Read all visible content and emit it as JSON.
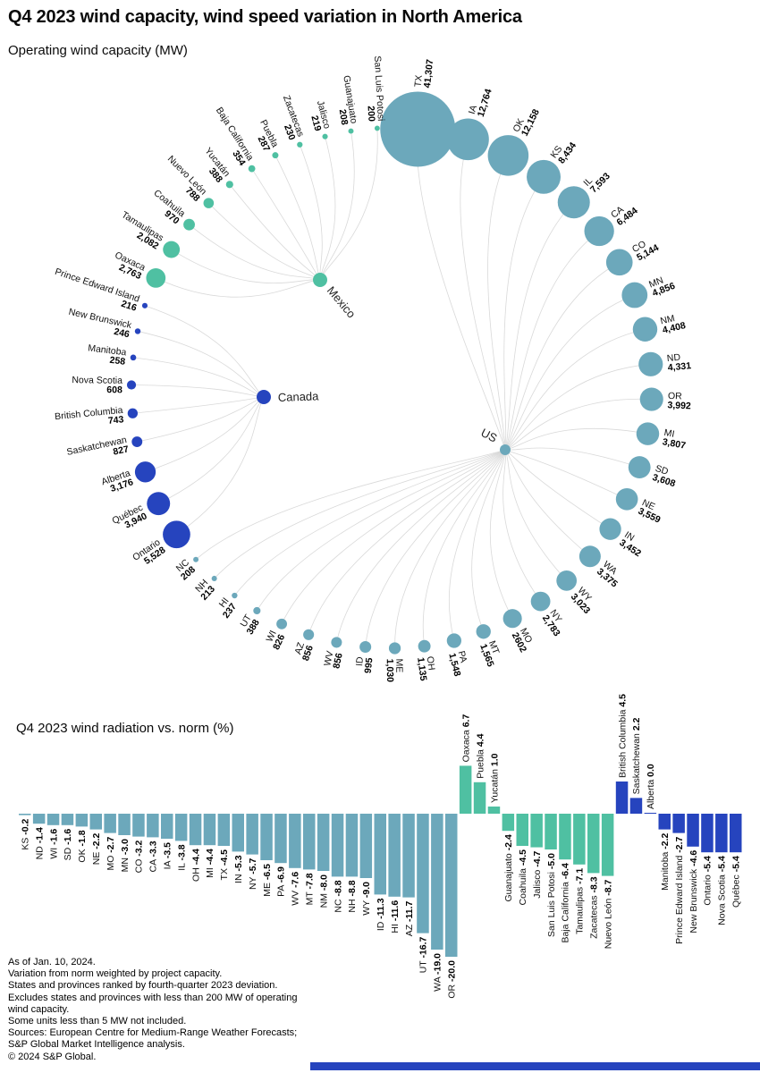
{
  "title": "Q4 2023 wind capacity, wind speed variation in North America",
  "colors": {
    "us": "#6CA8BB",
    "canada": "#2644BE",
    "mexico": "#4FC0A2",
    "link": "#D9D9D9",
    "text": "#111111",
    "bottom_rule": "#2644BE"
  },
  "chart_data": [
    {
      "type": "bubble",
      "title": "Operating wind capacity (MW)",
      "unit": "MW",
      "groups": [
        {
          "name": "US",
          "color_key": "us",
          "nodes": [
            {
              "label": "TX",
              "value": 41307,
              "display": "41,307"
            },
            {
              "label": "IA",
              "value": 12764,
              "display": "12,764"
            },
            {
              "label": "OK",
              "value": 12158,
              "display": "12,158"
            },
            {
              "label": "KS",
              "value": 8434,
              "display": "8,434"
            },
            {
              "label": "IL",
              "value": 7593,
              "display": "7,593"
            },
            {
              "label": "CA",
              "value": 6484,
              "display": "6,484"
            },
            {
              "label": "CO",
              "value": 5144,
              "display": "5,144"
            },
            {
              "label": "MN",
              "value": 4856,
              "display": "4,856"
            },
            {
              "label": "NM",
              "value": 4408,
              "display": "4,408"
            },
            {
              "label": "ND",
              "value": 4331,
              "display": "4,331"
            },
            {
              "label": "OR",
              "value": 3992,
              "display": "3,992"
            },
            {
              "label": "MI",
              "value": 3807,
              "display": "3,807"
            },
            {
              "label": "SD",
              "value": 3608,
              "display": "3,608"
            },
            {
              "label": "NE",
              "value": 3559,
              "display": "3,559"
            },
            {
              "label": "IN",
              "value": 3452,
              "display": "3,452"
            },
            {
              "label": "WA",
              "value": 3375,
              "display": "3,375"
            },
            {
              "label": "WY",
              "value": 3023,
              "display": "3,023"
            },
            {
              "label": "NY",
              "value": 2783,
              "display": "2,783"
            },
            {
              "label": "MO",
              "value": 2602,
              "display": "2602"
            },
            {
              "label": "MT",
              "value": 1565,
              "display": "1,565"
            },
            {
              "label": "PA",
              "value": 1548,
              "display": "1,548"
            },
            {
              "label": "OH",
              "value": 1135,
              "display": "1,135"
            },
            {
              "label": "ME",
              "value": 1030,
              "display": "1,030"
            },
            {
              "label": "ID",
              "value": 995,
              "display": "995"
            },
            {
              "label": "WV",
              "value": 856,
              "display": "856"
            },
            {
              "label": "AZ",
              "value": 856,
              "display": "856"
            },
            {
              "label": "WI",
              "value": 826,
              "display": "826"
            },
            {
              "label": "UT",
              "value": 388,
              "display": "388"
            },
            {
              "label": "HI",
              "value": 237,
              "display": "237"
            },
            {
              "label": "NH",
              "value": 213,
              "display": "213"
            },
            {
              "label": "NC",
              "value": 208,
              "display": "208"
            }
          ]
        },
        {
          "name": "Canada",
          "color_key": "canada",
          "nodes": [
            {
              "label": "Ontario",
              "value": 5528,
              "display": "5,528"
            },
            {
              "label": "Québec",
              "value": 3940,
              "display": "3,940"
            },
            {
              "label": "Alberta",
              "value": 3176,
              "display": "3,176"
            },
            {
              "label": "Saskatchewan",
              "value": 827,
              "display": "827"
            },
            {
              "label": "British Columbia",
              "value": 743,
              "display": "743"
            },
            {
              "label": "Nova Scotia",
              "value": 608,
              "display": "608"
            },
            {
              "label": "Manitoba",
              "value": 258,
              "display": "258"
            },
            {
              "label": "New Brunswick",
              "value": 246,
              "display": "246"
            },
            {
              "label": "Prince Edward Island",
              "value": 216,
              "display": "216"
            }
          ]
        },
        {
          "name": "Mexico",
          "color_key": "mexico",
          "nodes": [
            {
              "label": "Oaxaca",
              "value": 2763,
              "display": "2,763"
            },
            {
              "label": "Tamaulipas",
              "value": 2082,
              "display": "2,082"
            },
            {
              "label": "Coahuila",
              "value": 970,
              "display": "970"
            },
            {
              "label": "Nuevo León",
              "value": 788,
              "display": "788"
            },
            {
              "label": "Yucatán",
              "value": 388,
              "display": "388"
            },
            {
              "label": "Baja California",
              "value": 354,
              "display": "354"
            },
            {
              "label": "Puebla",
              "value": 287,
              "display": "287"
            },
            {
              "label": "Zacatecas",
              "value": 230,
              "display": "230"
            },
            {
              "label": "Jalisco",
              "value": 219,
              "display": "219"
            },
            {
              "label": "Guanajuato",
              "value": 208,
              "display": "208"
            },
            {
              "label": "San Luis Potosi",
              "value": 200,
              "display": "200"
            }
          ]
        }
      ]
    },
    {
      "type": "bar",
      "title": "Q4 2023 wind radiation vs. norm (%)",
      "unit": "%",
      "ylim": [
        -20,
        6.7
      ],
      "series": [
        {
          "name": "US",
          "color_key": "us",
          "categories": [
            "KS",
            "ND",
            "WI",
            "SD",
            "OK",
            "NE",
            "MO",
            "MN",
            "CO",
            "CA",
            "IA",
            "IL",
            "OH",
            "MI",
            "TX",
            "IN",
            "NY",
            "ME",
            "PA",
            "WV",
            "MT",
            "NM",
            "NC",
            "NH",
            "WY",
            "ID",
            "HI",
            "AZ",
            "UT",
            "WA",
            "OR"
          ],
          "values": [
            -0.2,
            -1.4,
            -1.6,
            -1.6,
            -1.8,
            -2.2,
            -2.7,
            -3.0,
            -3.2,
            -3.3,
            -3.5,
            -3.8,
            -4.4,
            -4.4,
            -4.5,
            -5.3,
            -5.7,
            -6.5,
            -6.9,
            -7.6,
            -7.8,
            -8.0,
            -8.8,
            -8.8,
            -9.0,
            -11.3,
            -11.6,
            -11.7,
            -16.7,
            -19.0,
            -20.0
          ]
        },
        {
          "name": "Mexico",
          "color_key": "mexico",
          "categories": [
            "Oaxaca",
            "Puebla",
            "Yucatán",
            "Guanajuato",
            "Coahuila",
            "Jalisco",
            "San Luis Potosi",
            "Baja California",
            "Tamaulipas",
            "Zacatecas",
            "Nuevo León"
          ],
          "values": [
            6.7,
            4.4,
            1.0,
            -2.4,
            -4.5,
            -4.7,
            -5.0,
            -6.4,
            -7.1,
            -8.3,
            -8.7
          ]
        },
        {
          "name": "Canada",
          "color_key": "canada",
          "categories": [
            "British Columbia",
            "Saskatchewan",
            "Alberta",
            "Manitoba",
            "Prince Edward Island",
            "New Brunswick",
            "Ontario",
            "Nova Scotia",
            "Québec"
          ],
          "values": [
            4.5,
            2.2,
            0.0,
            -2.2,
            -2.7,
            -4.6,
            -5.4,
            -5.4,
            -5.4
          ]
        }
      ]
    }
  ],
  "footnotes": [
    "As of Jan. 10, 2024.",
    "Variation from norm weighted by project capacity.",
    "States and provinces ranked by fourth-quarter 2023 deviation.",
    "Excludes states and provinces with less than 200 MW of operating",
    "wind capacity.",
    "Some units less than 5 MW not included.",
    "Sources: European Centre for Medium-Range Weather Forecasts;",
    "S&P Global Market Intelligence analysis.",
    "© 2024 S&P Global."
  ]
}
